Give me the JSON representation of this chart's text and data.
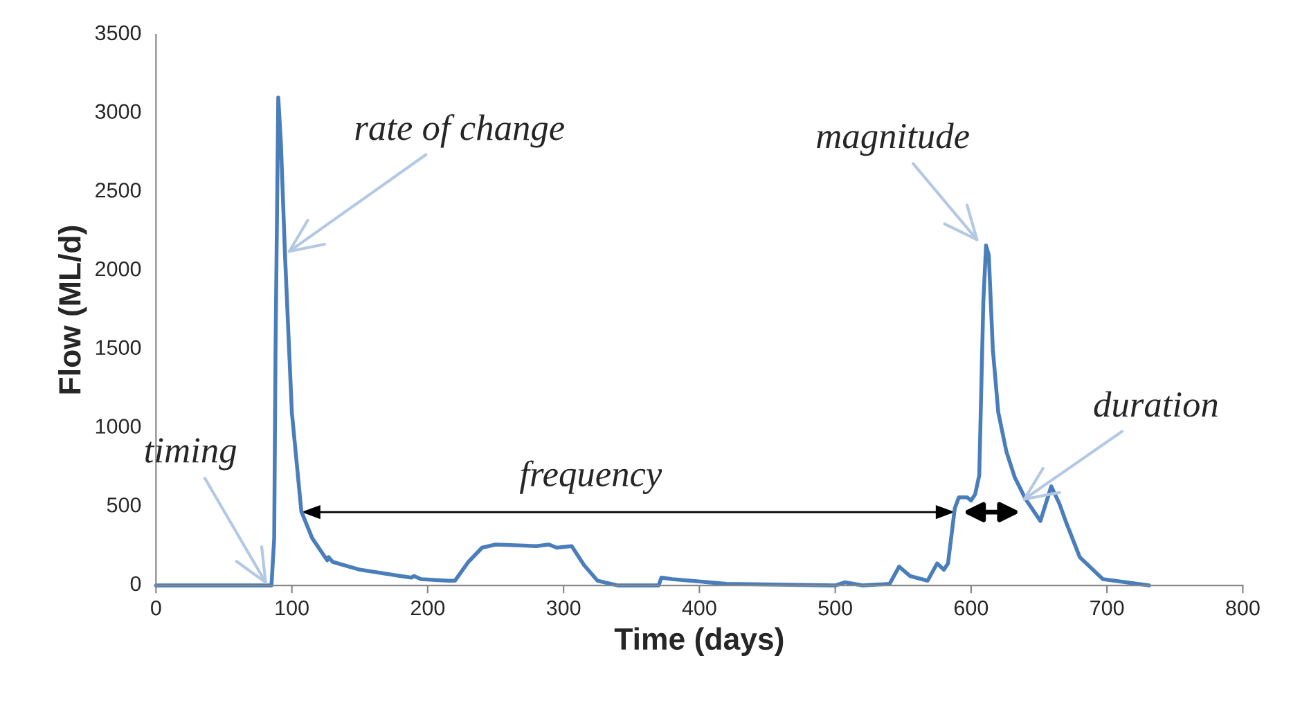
{
  "chart_data": {
    "type": "line",
    "xlabel": "Time (days)",
    "ylabel": "Flow (ML/d)",
    "xlim": [
      0,
      800
    ],
    "xticks": [
      0,
      100,
      200,
      300,
      400,
      500,
      600,
      700,
      800
    ],
    "ylim": [
      0,
      3500
    ],
    "yticks": [
      0,
      500,
      1000,
      1500,
      2000,
      2500,
      3000,
      3500
    ],
    "grid": false,
    "marker": "none",
    "line_style": "solid",
    "x": [
      0,
      85,
      87,
      88,
      90,
      92,
      95,
      100,
      107,
      115,
      126,
      127,
      130,
      150,
      180,
      188,
      190,
      195,
      215,
      220,
      230,
      240,
      250,
      280,
      289,
      295,
      306,
      315,
      325,
      340,
      370,
      372,
      380,
      420,
      500,
      507,
      520,
      540,
      547,
      555,
      568,
      575,
      580,
      583,
      588,
      591,
      597,
      600,
      603,
      606,
      609,
      611,
      613,
      616,
      620,
      626,
      632,
      640,
      651,
      659,
      665,
      670,
      680,
      697,
      731
    ],
    "series": [
      {
        "color": "#4a7ebb",
        "values": [
          0,
          0,
          300,
          1500,
          3100,
          2800,
          2090,
          1100,
          470,
          300,
          160,
          180,
          150,
          100,
          60,
          50,
          60,
          40,
          30,
          30,
          150,
          240,
          260,
          250,
          260,
          240,
          250,
          130,
          30,
          0,
          0,
          50,
          40,
          10,
          0,
          20,
          0,
          10,
          120,
          60,
          30,
          140,
          100,
          140,
          490,
          560,
          560,
          540,
          580,
          700,
          1800,
          2160,
          2100,
          1500,
          1100,
          850,
          690,
          550,
          410,
          630,
          520,
          400,
          180,
          40,
          0
        ]
      }
    ],
    "annotations": [
      {
        "text": "timing",
        "x": 82,
        "y": 0
      },
      {
        "text": "rate of change",
        "x": 96,
        "y": 2110
      },
      "frequency",
      {
        "text": "magnitude",
        "x": 606,
        "y": 2180
      },
      {
        "text": "duration",
        "x": 637,
        "y": 535
      }
    ]
  }
}
